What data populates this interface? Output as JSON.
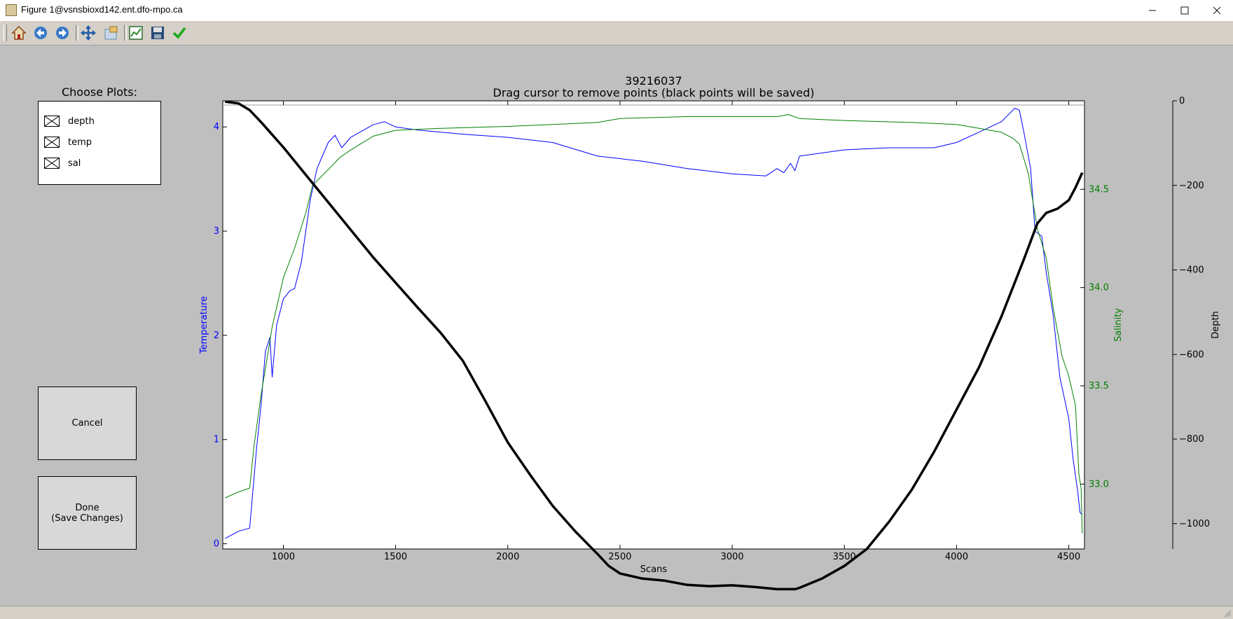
{
  "window": {
    "title": "Figure 1@vsnsbioxd142.ent.dfo-mpo.ca",
    "minimize_icon": "minimize-icon",
    "maximize_icon": "maximize-icon",
    "close_icon": "close-icon"
  },
  "toolbar": {
    "icons": [
      "home-icon",
      "back-icon",
      "forward-icon",
      "pan-icon",
      "configure-subplots-icon",
      "zoom-icon",
      "save-icon",
      "check-icon"
    ]
  },
  "left_panel": {
    "title": "Choose Plots:",
    "options": [
      {
        "label": "depth",
        "checked": true
      },
      {
        "label": "temp",
        "checked": true
      },
      {
        "label": "sal",
        "checked": true
      }
    ],
    "cancel_label": "Cancel",
    "done_label": "Done\n(Save Changes)"
  },
  "chart": {
    "title_line1": "39216037",
    "title_line2": "Drag cursor to remove points (black points will be saved)"
  },
  "chart_data": {
    "type": "line",
    "title": "39216037\nDrag cursor to remove points (black points will be saved)",
    "xlabel": "Scans",
    "xlim": [
      730,
      4570
    ],
    "xticks": [
      1000,
      1500,
      2000,
      2500,
      3000,
      3500,
      4000,
      4500
    ],
    "axes": {
      "temperature": {
        "label": "Temperature",
        "color": "#0000ff",
        "lim": [
          -0.05,
          4.25
        ],
        "ticks": [
          0,
          1,
          2,
          3,
          4
        ]
      },
      "salinity": {
        "label": "Salinity",
        "color": "#008000",
        "lim": [
          32.67,
          34.95
        ],
        "ticks": [
          "33.0",
          "33.5",
          "34.0",
          "34.5"
        ]
      },
      "depth": {
        "label": "Depth",
        "color": "#000000",
        "lim": [
          -1060,
          0
        ],
        "ticks": [
          0,
          -200,
          -400,
          -600,
          -800,
          -1000
        ]
      }
    },
    "series": [
      {
        "axis": "temperature",
        "color": "#0000ff",
        "x": [
          740,
          800,
          850,
          880,
          900,
          920,
          940,
          950,
          970,
          1000,
          1030,
          1050,
          1080,
          1100,
          1120,
          1150,
          1200,
          1230,
          1260,
          1300,
          1400,
          1450,
          1500,
          1600,
          1800,
          2000,
          2200,
          2400,
          2600,
          2800,
          3000,
          3150,
          3200,
          3230,
          3260,
          3280,
          3300,
          3500,
          3700,
          3900,
          4000,
          4100,
          4200,
          4260,
          4280,
          4300,
          4330,
          4350,
          4380,
          4400,
          4430,
          4460,
          4480,
          4500,
          4520,
          4540,
          4550,
          4560
        ],
        "y": [
          0.05,
          0.12,
          0.15,
          0.9,
          1.32,
          1.85,
          1.98,
          1.6,
          2.1,
          2.35,
          2.43,
          2.45,
          2.7,
          3.0,
          3.3,
          3.6,
          3.85,
          3.92,
          3.8,
          3.9,
          4.02,
          4.05,
          4.0,
          3.97,
          3.93,
          3.9,
          3.85,
          3.72,
          3.67,
          3.6,
          3.55,
          3.53,
          3.6,
          3.56,
          3.65,
          3.58,
          3.72,
          3.78,
          3.8,
          3.8,
          3.85,
          3.95,
          4.05,
          4.18,
          4.16,
          3.95,
          3.6,
          3.0,
          2.95,
          2.6,
          2.2,
          1.6,
          1.4,
          1.2,
          0.8,
          0.5,
          0.3,
          0.28
        ]
      },
      {
        "axis": "salinity",
        "color": "#008000",
        "x": [
          740,
          800,
          850,
          870,
          900,
          950,
          1000,
          1050,
          1100,
          1130,
          1200,
          1250,
          1300,
          1400,
          1500,
          1700,
          2000,
          2200,
          2400,
          2500,
          2800,
          3000,
          3200,
          3250,
          3300,
          3500,
          3800,
          4000,
          4100,
          4200,
          4250,
          4280,
          4320,
          4360,
          4400,
          4430,
          4470,
          4500,
          4530,
          4545,
          4555,
          4560
        ],
        "y": [
          32.93,
          32.96,
          32.98,
          33.2,
          33.45,
          33.8,
          34.05,
          34.2,
          34.38,
          34.52,
          34.6,
          34.66,
          34.7,
          34.77,
          34.8,
          34.81,
          34.82,
          34.83,
          34.84,
          34.86,
          34.87,
          34.87,
          34.87,
          34.88,
          34.86,
          34.85,
          34.84,
          34.83,
          34.81,
          34.79,
          34.76,
          34.73,
          34.58,
          34.3,
          34.15,
          33.9,
          33.65,
          33.55,
          33.4,
          33.05,
          32.98,
          32.75
        ]
      },
      {
        "axis": "depth",
        "color": "#000000",
        "x": [
          740,
          800,
          850,
          900,
          1000,
          1100,
          1200,
          1300,
          1400,
          1500,
          1600,
          1700,
          1800,
          1900,
          2000,
          2100,
          2200,
          2300,
          2400,
          2450,
          2500,
          2600,
          2700,
          2800,
          2900,
          3000,
          3100,
          3200,
          3280,
          3300,
          3400,
          3500,
          3600,
          3700,
          3800,
          3900,
          4000,
          4100,
          4200,
          4300,
          4360,
          4400,
          4450,
          4500,
          4530,
          4560
        ],
        "y": [
          -2,
          -6,
          -22,
          -50,
          -110,
          -175,
          -240,
          -305,
          -370,
          -430,
          -490,
          -548,
          -615,
          -710,
          -808,
          -885,
          -958,
          -1018,
          -1072,
          -1100,
          -1118,
          -1130,
          -1135,
          -1145,
          -1148,
          -1146,
          -1150,
          -1155,
          -1155,
          -1152,
          -1130,
          -1100,
          -1060,
          -995,
          -920,
          -830,
          -730,
          -630,
          -510,
          -375,
          -290,
          -265,
          -255,
          -235,
          -205,
          -170
        ]
      }
    ]
  }
}
